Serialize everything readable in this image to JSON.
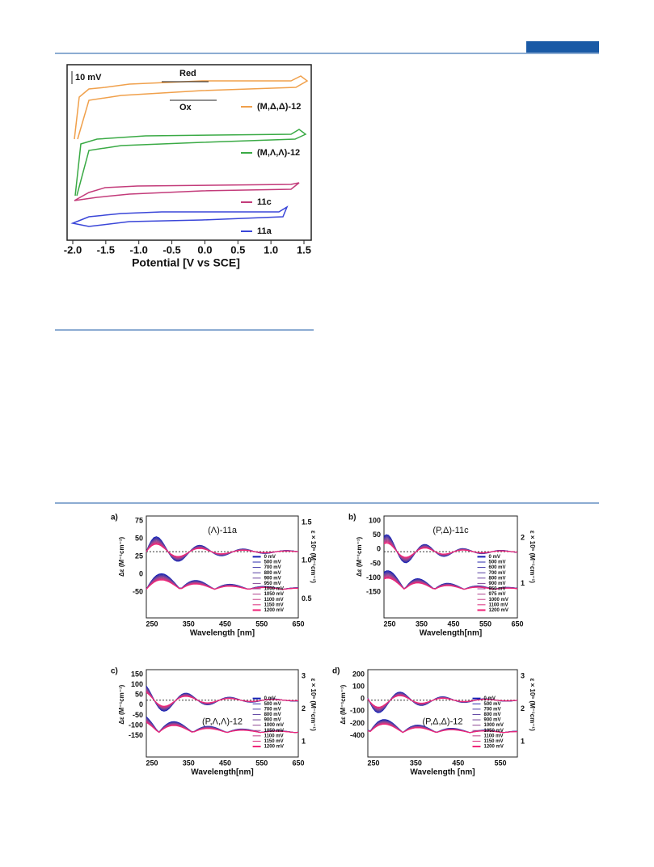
{
  "cv": {
    "scale_label": "10 mV",
    "red": "Red",
    "ox": "Ox",
    "traces": [
      "(M,Δ,Δ)-12",
      "(M,Λ,Λ)-12",
      "11c",
      "11a"
    ],
    "xticks": [
      "-2.0",
      "-1.5",
      "-1.0",
      "-0.5",
      "0.0",
      "0.5",
      "1.0",
      "1.5"
    ],
    "xlabel": "Potential [V vs SCE]"
  },
  "cd": [
    {
      "label": "a)",
      "title": "(Λ)-11a",
      "ylabel": "Δε (M⁻¹cm⁻¹)",
      "y2label": "ε × 10⁵ (M⁻¹cm⁻¹)",
      "yticks": [
        "75",
        "50",
        "25",
        "0",
        "-50"
      ],
      "y2ticks": [
        "1.5",
        "1.0",
        "0.5"
      ],
      "xticks": [
        "250",
        "350",
        "450",
        "550",
        "650"
      ],
      "xlabel": "Wavelength [nm]",
      "legend": [
        "0 mV",
        "500 mV",
        "700 mV",
        "800 mV",
        "900 mV",
        "950 mV",
        "1000 mV",
        "1050 mV",
        "1100 mV",
        "1150 mV",
        "1200 mV"
      ]
    },
    {
      "label": "b)",
      "title": "(P,Δ)-11c",
      "ylabel": "Δε (M⁻¹cm⁻¹)",
      "y2label": "ε × 10⁵ (M⁻¹cm⁻¹)",
      "yticks": [
        "100",
        "50",
        "0",
        "-50",
        "-100",
        "-150"
      ],
      "y2ticks": [
        "2",
        "1"
      ],
      "xticks": [
        "250",
        "350",
        "450",
        "550",
        "650"
      ],
      "xlabel": "Wavelength[nm]",
      "legend": [
        "0 mV",
        "500 mV",
        "600 mV",
        "700 mV",
        "800 mV",
        "900 mV",
        "950 mV",
        "975 mV",
        "1000 mV",
        "1100 mV",
        "1200 mV"
      ]
    },
    {
      "label": "c)",
      "title": "(P,Λ,Λ)-12",
      "ylabel": "Δε (M⁻¹cm⁻¹)",
      "y2label": "ε × 10⁵ (M⁻¹cm⁻¹)",
      "yticks": [
        "150",
        "100",
        "50",
        "0",
        "-50",
        "-100",
        "-150"
      ],
      "y2ticks": [
        "3",
        "2",
        "1"
      ],
      "xticks": [
        "250",
        "350",
        "450",
        "550",
        "650"
      ],
      "xlabel": "Wavelength[nm]",
      "legend": [
        "0 mV",
        "500 mV",
        "700 mV",
        "800 mV",
        "900 mV",
        "1000 mV",
        "1050 mV",
        "1100 mV",
        "1150 mV",
        "1200 mV"
      ]
    },
    {
      "label": "d)",
      "title": "(P,Δ,Δ)-12",
      "ylabel": "Δε (M⁻¹cm⁻¹)",
      "y2label": "ε × 10⁵ (M⁻¹cm⁻¹)",
      "yticks": [
        "200",
        "100",
        "0",
        "-100",
        "-200",
        "-400"
      ],
      "y2ticks": [
        "3",
        "2",
        "1"
      ],
      "xticks": [
        "250",
        "350",
        "450",
        "550"
      ],
      "xlabel": "Wavelength [nm]",
      "legend": [
        "0 mV",
        "500 mV",
        "700 mV",
        "800 mV",
        "900 mV",
        "1000 mV",
        "1050 mV",
        "1100 mV",
        "1150 mV",
        "1200 mV"
      ]
    }
  ]
}
